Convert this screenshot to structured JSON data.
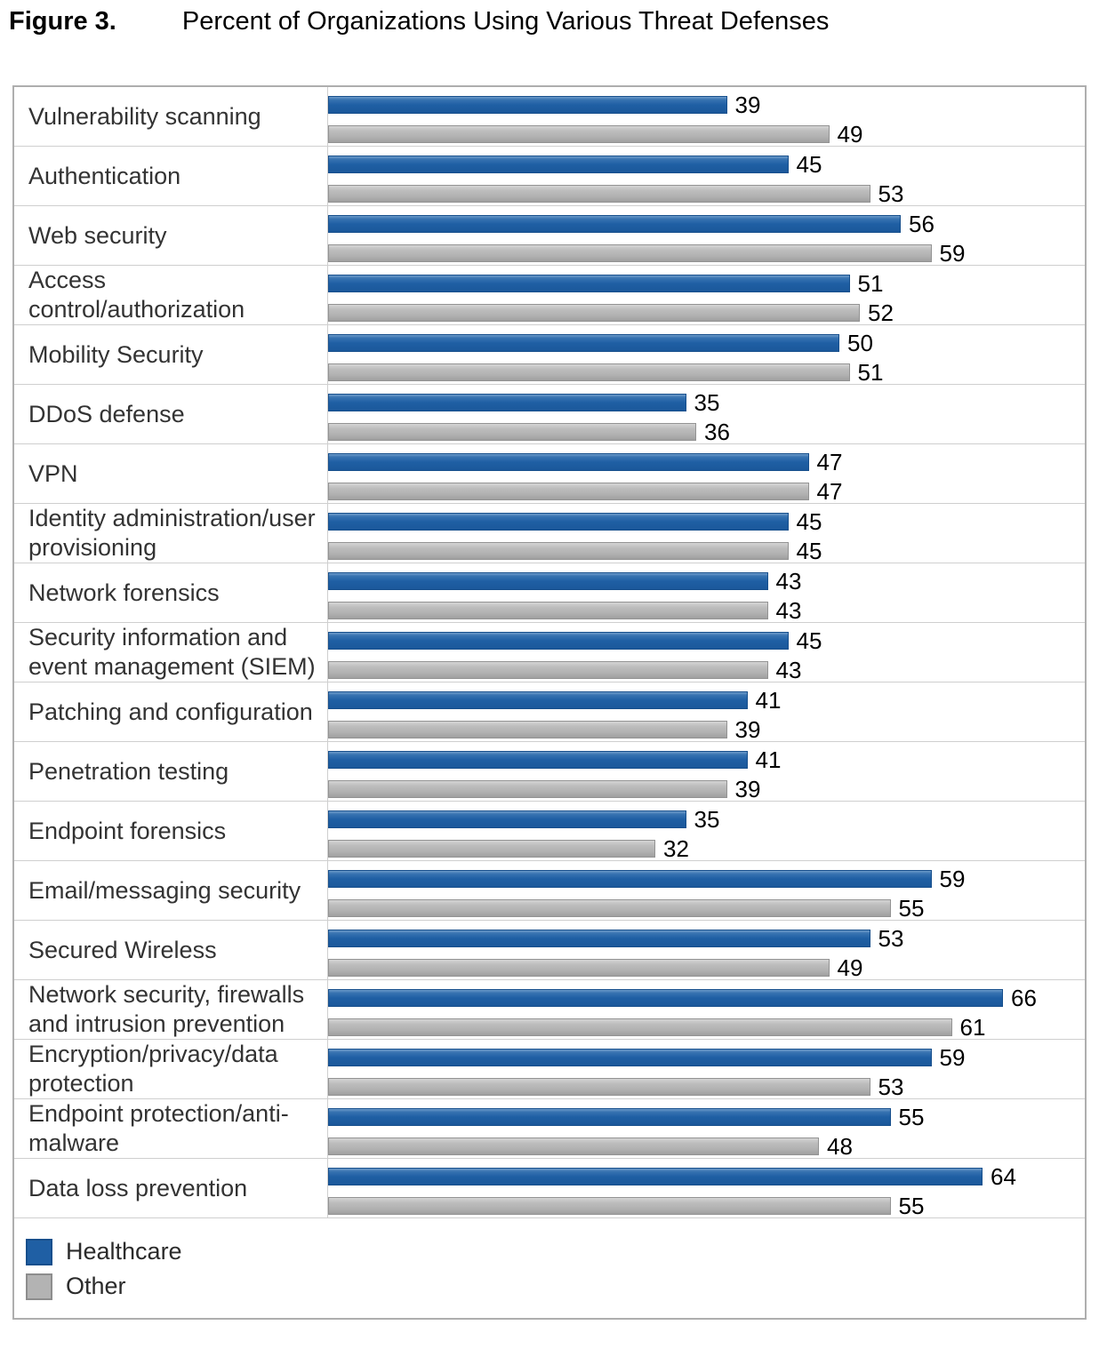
{
  "figure_label": "Figure 3.",
  "title": "Percent of Organizations Using Various Threat Defenses",
  "colors": {
    "healthcare": "#1f5fa4",
    "other": "#b3b3b3"
  },
  "chart_data": {
    "type": "bar",
    "orientation": "horizontal",
    "title": "Percent of Organizations Using Various Threat Defenses",
    "xlim": [
      0,
      74
    ],
    "grid": "row-separators",
    "data_labels": true,
    "legend_position": "bottom-left",
    "categories": [
      "Vulnerability scanning",
      "Authentication",
      "Web security",
      "Access control/authorization",
      "Mobility Security",
      "DDoS defense",
      "VPN",
      "Identity administration/user provisioning",
      "Network forensics",
      "Security information and event management (SIEM)",
      "Patching and configuration",
      "Penetration testing",
      "Endpoint forensics",
      "Email/messaging security",
      "Secured Wireless",
      "Network security, firewalls and intrusion prevention",
      "Encryption/privacy/data protection",
      "Endpoint protection/anti-malware",
      "Data loss prevention"
    ],
    "series": [
      {
        "name": "Healthcare",
        "color": "#1f5fa4",
        "values": [
          39,
          45,
          56,
          51,
          50,
          35,
          47,
          45,
          43,
          45,
          41,
          41,
          35,
          59,
          53,
          66,
          59,
          55,
          64
        ]
      },
      {
        "name": "Other",
        "color": "#b3b3b3",
        "values": [
          49,
          53,
          59,
          52,
          51,
          36,
          47,
          45,
          43,
          43,
          39,
          39,
          32,
          55,
          49,
          61,
          53,
          48,
          55
        ]
      }
    ]
  }
}
